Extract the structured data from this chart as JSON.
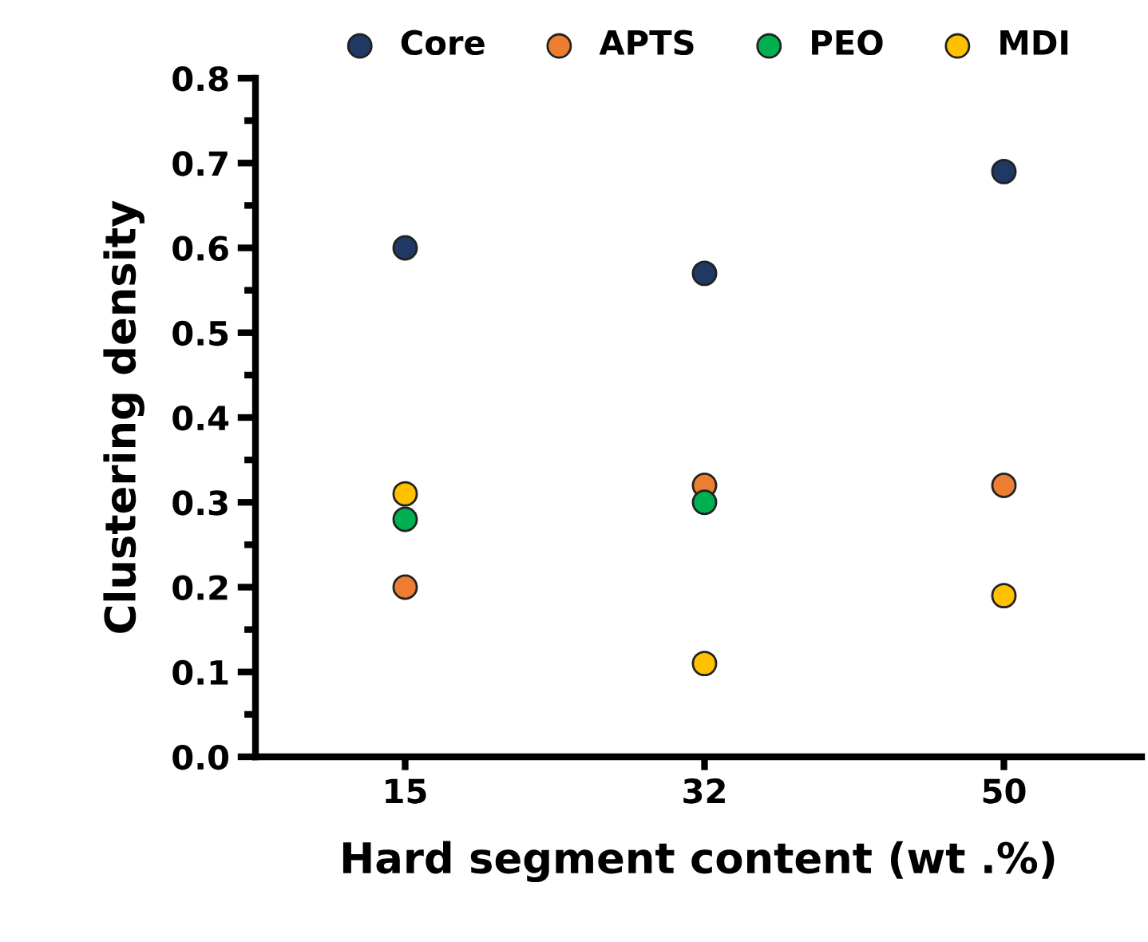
{
  "chart_data": {
    "type": "scatter",
    "xlabel": "Hard segment content (wt .%)",
    "ylabel": "Clustering density",
    "categories": [
      "15",
      "32",
      "50"
    ],
    "series": [
      {
        "name": "Core",
        "color": "#203864",
        "values": [
          0.6,
          0.57,
          0.69
        ]
      },
      {
        "name": "APTS",
        "color": "#ed7d31",
        "values": [
          0.2,
          0.32,
          0.32
        ]
      },
      {
        "name": "PEO",
        "color": "#00b050",
        "values": [
          0.28,
          0.3,
          null
        ]
      },
      {
        "name": "MDI",
        "color": "#ffc000",
        "values": [
          0.31,
          0.11,
          0.19
        ]
      }
    ],
    "ylim": [
      0,
      0.8
    ],
    "yticks": [
      {
        "value": 0,
        "label": "0.0"
      },
      {
        "value": 0.05,
        "label": null
      },
      0.1,
      {
        "value": 0.15,
        "label": null
      },
      0.2,
      {
        "value": 0.25,
        "label": null
      },
      0.3,
      {
        "value": 0.35,
        "label": null
      },
      0.4,
      {
        "value": 0.45,
        "label": null
      },
      0.5,
      {
        "value": 0.55,
        "label": null
      },
      0.6,
      {
        "value": 0.65,
        "label": null
      },
      0.7,
      {
        "value": 0.75,
        "label": null
      },
      0.8
    ],
    "marker": "circle",
    "legend": "top",
    "grid": false
  }
}
